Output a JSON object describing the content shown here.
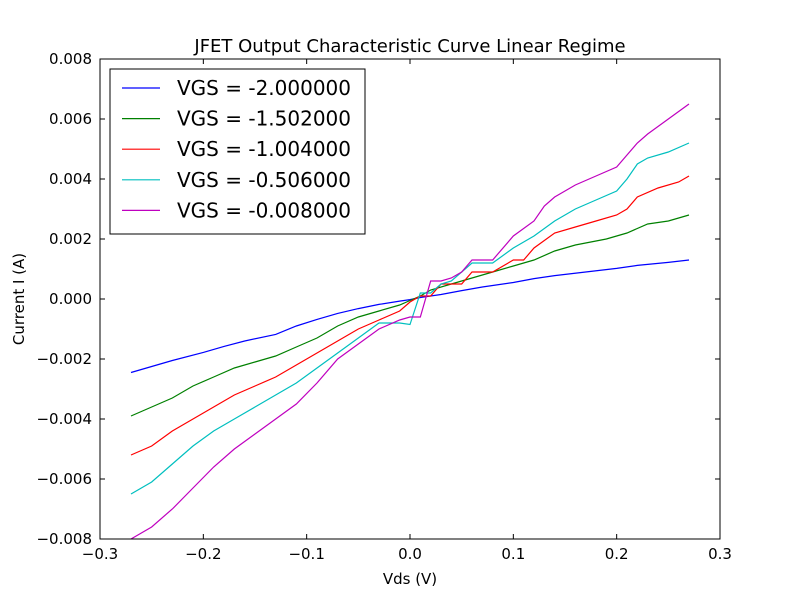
{
  "chart_data": {
    "type": "line",
    "title": "JFET Output Characteristic Curve Linear Regime",
    "xlabel": "Vds (V)",
    "ylabel": "Current I (A)",
    "xlim": [
      -0.3,
      0.3
    ],
    "ylim": [
      -0.008,
      0.008
    ],
    "x_ticks": [
      -0.3,
      -0.2,
      -0.1,
      0.0,
      0.1,
      0.2,
      0.3
    ],
    "x_tick_labels": [
      "−0.3",
      "−0.2",
      "−0.1",
      "0.0",
      "0.1",
      "0.2",
      "0.3"
    ],
    "y_ticks": [
      -0.008,
      -0.006,
      -0.004,
      -0.002,
      0.0,
      0.002,
      0.004,
      0.006,
      0.008
    ],
    "y_tick_labels": [
      "−0.008",
      "−0.006",
      "−0.004",
      "−0.002",
      "0.000",
      "0.002",
      "0.004",
      "0.006",
      "0.008"
    ],
    "grid": false,
    "legend_position": "top-left",
    "series": [
      {
        "name": "VGS = -2.000000",
        "color": "#0000ff",
        "x": [
          -0.27,
          -0.25,
          -0.23,
          -0.2,
          -0.18,
          -0.16,
          -0.13,
          -0.11,
          -0.09,
          -0.07,
          -0.05,
          -0.03,
          -0.01,
          0.0,
          0.01,
          0.03,
          0.05,
          0.07,
          0.1,
          0.12,
          0.14,
          0.17,
          0.2,
          0.22,
          0.25,
          0.27
        ],
        "y": [
          -0.00245,
          -0.00225,
          -0.00205,
          -0.00178,
          -0.00158,
          -0.0014,
          -0.00118,
          -0.0009,
          -0.00068,
          -0.00048,
          -0.00032,
          -0.00018,
          -7e-05,
          -2e-05,
          5e-05,
          0.00015,
          0.00028,
          0.0004,
          0.00055,
          0.00068,
          0.00078,
          0.0009,
          0.00102,
          0.00112,
          0.00122,
          0.0013
        ]
      },
      {
        "name": "VGS = -1.502000",
        "color": "#008000",
        "x": [
          -0.27,
          -0.25,
          -0.23,
          -0.21,
          -0.19,
          -0.17,
          -0.15,
          -0.13,
          -0.11,
          -0.09,
          -0.07,
          -0.05,
          -0.03,
          -0.01,
          0.0,
          0.01,
          0.02,
          0.04,
          0.06,
          0.08,
          0.1,
          0.12,
          0.14,
          0.16,
          0.19,
          0.21,
          0.23,
          0.25,
          0.27
        ],
        "y": [
          -0.0039,
          -0.0036,
          -0.0033,
          -0.0029,
          -0.0026,
          -0.0023,
          -0.0021,
          -0.0019,
          -0.0016,
          -0.0013,
          -0.0009,
          -0.0006,
          -0.0004,
          -0.0002,
          -5e-05,
          0.0001,
          0.0003,
          0.0005,
          0.0007,
          0.0009,
          0.0011,
          0.0013,
          0.0016,
          0.0018,
          0.002,
          0.0022,
          0.0025,
          0.0026,
          0.0028
        ]
      },
      {
        "name": "VGS = -1.004000",
        "color": "#ff0000",
        "x": [
          -0.27,
          -0.25,
          -0.23,
          -0.21,
          -0.19,
          -0.17,
          -0.15,
          -0.13,
          -0.11,
          -0.09,
          -0.07,
          -0.05,
          -0.03,
          -0.01,
          0.0,
          0.01,
          0.02,
          0.03,
          0.05,
          0.06,
          0.08,
          0.1,
          0.11,
          0.12,
          0.14,
          0.16,
          0.18,
          0.2,
          0.21,
          0.22,
          0.24,
          0.26,
          0.27
        ],
        "y": [
          -0.0052,
          -0.0049,
          -0.0044,
          -0.004,
          -0.0036,
          -0.0032,
          -0.0029,
          -0.0026,
          -0.0022,
          -0.0018,
          -0.0014,
          -0.001,
          -0.0007,
          -0.0004,
          -0.0001,
          0.0001,
          0.0001,
          0.0005,
          0.0005,
          0.0009,
          0.0009,
          0.0013,
          0.0013,
          0.0017,
          0.0022,
          0.0024,
          0.0026,
          0.0028,
          0.003,
          0.0034,
          0.0037,
          0.0039,
          0.0041
        ]
      },
      {
        "name": "VGS = -0.506000",
        "color": "#00bfbf",
        "x": [
          -0.27,
          -0.25,
          -0.23,
          -0.21,
          -0.19,
          -0.17,
          -0.15,
          -0.13,
          -0.11,
          -0.09,
          -0.07,
          -0.05,
          -0.03,
          -0.01,
          0.0,
          0.01,
          0.02,
          0.03,
          0.04,
          0.05,
          0.06,
          0.08,
          0.1,
          0.12,
          0.14,
          0.16,
          0.18,
          0.2,
          0.21,
          0.22,
          0.23,
          0.25,
          0.27
        ],
        "y": [
          -0.0065,
          -0.0061,
          -0.0055,
          -0.0049,
          -0.0044,
          -0.004,
          -0.0036,
          -0.0032,
          -0.0028,
          -0.0023,
          -0.0018,
          -0.0013,
          -0.0008,
          -0.0008,
          -0.00085,
          0.0002,
          0.0002,
          0.0005,
          0.0006,
          0.0009,
          0.0012,
          0.0012,
          0.0017,
          0.0021,
          0.0026,
          0.003,
          0.0033,
          0.0036,
          0.004,
          0.0045,
          0.0047,
          0.0049,
          0.0052
        ]
      },
      {
        "name": "VGS = -0.008000",
        "color": "#bf00bf",
        "x": [
          -0.27,
          -0.25,
          -0.23,
          -0.21,
          -0.19,
          -0.17,
          -0.15,
          -0.13,
          -0.11,
          -0.09,
          -0.07,
          -0.05,
          -0.03,
          -0.01,
          0.0,
          0.01,
          0.02,
          0.03,
          0.04,
          0.05,
          0.06,
          0.08,
          0.1,
          0.12,
          0.13,
          0.14,
          0.16,
          0.18,
          0.2,
          0.21,
          0.22,
          0.23,
          0.25,
          0.27
        ],
        "y": [
          -0.008,
          -0.0076,
          -0.007,
          -0.0063,
          -0.0056,
          -0.005,
          -0.0045,
          -0.004,
          -0.0035,
          -0.0028,
          -0.002,
          -0.0015,
          -0.001,
          -0.0007,
          -0.0006,
          -0.0006,
          0.0006,
          0.0006,
          0.0007,
          0.0009,
          0.0013,
          0.0013,
          0.0021,
          0.0026,
          0.0031,
          0.0034,
          0.0038,
          0.0041,
          0.0044,
          0.0048,
          0.0052,
          0.0055,
          0.006,
          0.0065
        ]
      }
    ]
  }
}
